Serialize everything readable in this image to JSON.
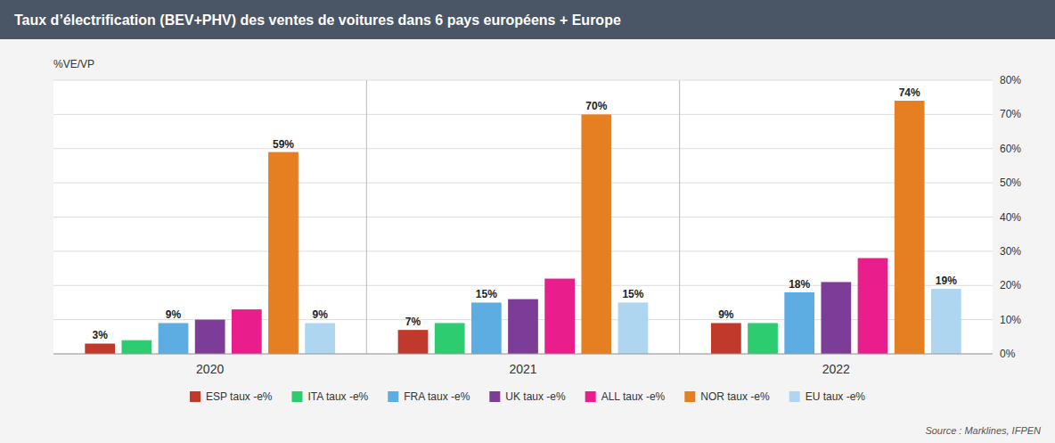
{
  "chart_data": {
    "type": "bar",
    "title": "Taux d’électrification (BEV+PHV) des ventes de voitures dans 6 pays européens + Europe",
    "ylabel": "%VE/VP",
    "annotations": [
      "Source : Marklines, IFPEN"
    ],
    "categories": [
      "2020",
      "2021",
      "2022"
    ],
    "series": [
      {
        "name": "ESP taux -e%",
        "color": "#c0392b",
        "values": [
          3,
          7,
          9
        ],
        "value_labels": [
          "3%",
          "7%",
          "9%"
        ]
      },
      {
        "name": "ITA taux -e%",
        "color": "#2ecc71",
        "values": [
          4,
          9,
          9
        ]
      },
      {
        "name": "FRA taux -e%",
        "color": "#5dade2",
        "values": [
          9,
          15,
          18
        ],
        "value_labels": [
          "9%",
          "15%",
          "18%"
        ]
      },
      {
        "name": "UK taux -e%",
        "color": "#7d3c98",
        "values": [
          10,
          16,
          21
        ]
      },
      {
        "name": "ALL taux -e%",
        "color": "#e91e8c",
        "values": [
          13,
          22,
          28
        ]
      },
      {
        "name": "NOR taux -e%",
        "color": "#e67e22",
        "values": [
          59,
          70,
          74
        ],
        "value_labels": [
          "59%",
          "70%",
          "74%"
        ]
      },
      {
        "name": "EU taux -e%",
        "color": "#aed6f1",
        "values": [
          9,
          15,
          19
        ],
        "value_labels": [
          "9%",
          "15%",
          "19%"
        ]
      }
    ],
    "ylim": [
      0,
      80
    ],
    "yticks": [
      {
        "value": 0,
        "label": "0%"
      },
      {
        "value": 10,
        "label": "10%"
      },
      {
        "value": 20,
        "label": "20%"
      },
      {
        "value": 30,
        "label": "30%"
      },
      {
        "value": 40,
        "label": "40%"
      },
      {
        "value": 50,
        "label": "50%"
      },
      {
        "value": 60,
        "label": "60%"
      },
      {
        "value": 70,
        "label": "70%"
      },
      {
        "value": 80,
        "label": "80%"
      }
    ],
    "grid": true,
    "data_labels": true,
    "legend": "bottom"
  }
}
